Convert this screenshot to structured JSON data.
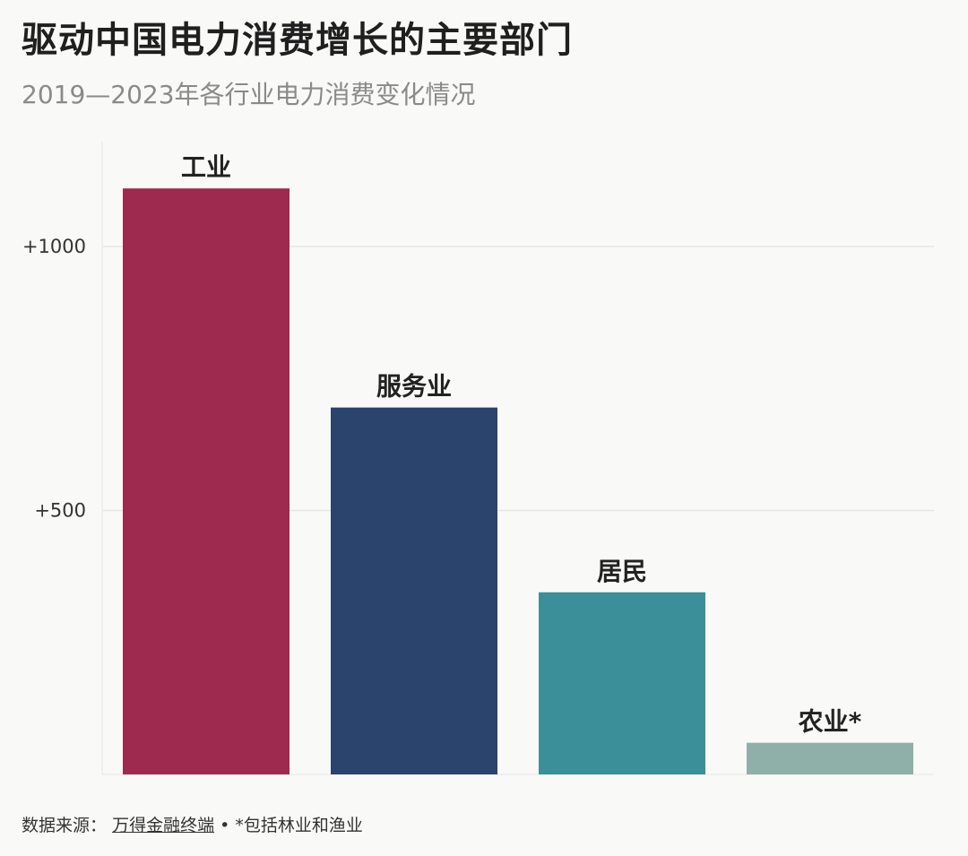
{
  "title": "驱动中国电力消费增长的主要部门",
  "subtitle": "2019—2023年各行业电力消费变化情况",
  "source": {
    "label": "数据来源：",
    "link_text": "万得金融终端",
    "separator": "•",
    "note": "*包括林业和渔业"
  },
  "chart_data": {
    "type": "bar",
    "categories": [
      "工业",
      "服务业",
      "居民",
      "农业*"
    ],
    "values": [
      1110,
      695,
      345,
      60
    ],
    "colors": [
      "#9e2a4f",
      "#2a446e",
      "#3a8f98",
      "#8fb0a9"
    ],
    "y_ticks": [
      500,
      1000
    ],
    "y_tick_labels": [
      "+500",
      "+1000"
    ],
    "ylim": [
      0,
      1200
    ],
    "grid": true
  }
}
